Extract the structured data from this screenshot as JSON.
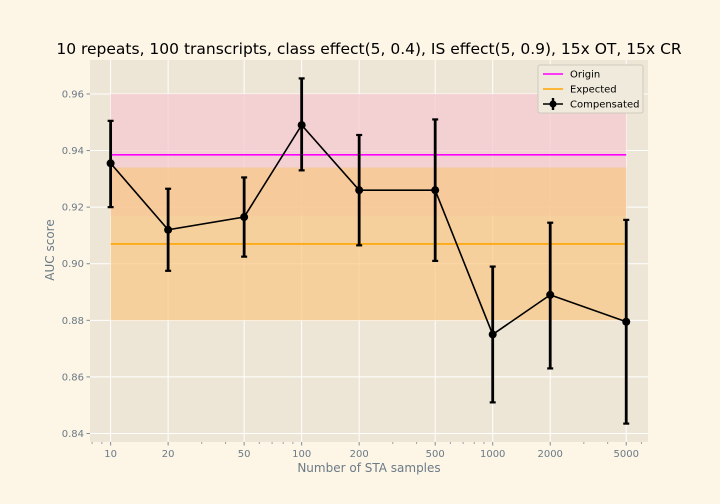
{
  "chart_data": {
    "type": "line",
    "title": "10 repeats, 100 transcripts, class effect(5, 0.4), IS effect(5, 0.9), 15x OT, 15x CR",
    "xlabel": "Number of STA samples",
    "ylabel": "AUC score",
    "x_scale": "log",
    "xlim": [
      7.8,
      6500
    ],
    "ylim": [
      0.837,
      0.972
    ],
    "x_ticks": [
      10,
      20,
      50,
      100,
      200,
      500,
      1000,
      2000,
      5000
    ],
    "y_ticks": [
      0.84,
      0.86,
      0.88,
      0.9,
      0.92,
      0.94,
      0.96
    ],
    "y_tick_labels": [
      "0.84",
      "0.86",
      "0.88",
      "0.90",
      "0.92",
      "0.94",
      "0.96"
    ],
    "grid": true,
    "legend_position": "top-right",
    "bands": [
      {
        "name": "Origin",
        "low": 0.917,
        "high": 0.96,
        "x_range": [
          10,
          5000
        ],
        "color": "#f5c8d0"
      },
      {
        "name": "Expected",
        "low": 0.88,
        "high": 0.934,
        "x_range": [
          10,
          5000
        ],
        "color": "#f8c785"
      }
    ],
    "series": [
      {
        "name": "Origin",
        "kind": "hline",
        "y": 0.9385,
        "x_range": [
          10,
          5000
        ],
        "color": "#ff00ff"
      },
      {
        "name": "Expected",
        "kind": "hline",
        "y": 0.907,
        "x_range": [
          10,
          5000
        ],
        "color": "#ffa500"
      },
      {
        "name": "Compensated",
        "kind": "errorbar",
        "color": "#000000",
        "x": [
          10,
          20,
          50,
          100,
          200,
          500,
          1000,
          2000,
          5000
        ],
        "y": [
          0.9355,
          0.912,
          0.9165,
          0.949,
          0.926,
          0.926,
          0.875,
          0.889,
          0.8795
        ],
        "yerr_low": [
          0.92,
          0.8975,
          0.9025,
          0.933,
          0.9065,
          0.901,
          0.851,
          0.863,
          0.8435
        ],
        "yerr_high": [
          0.9505,
          0.9265,
          0.9305,
          0.9655,
          0.9455,
          0.951,
          0.899,
          0.9145,
          0.9155
        ]
      }
    ]
  }
}
